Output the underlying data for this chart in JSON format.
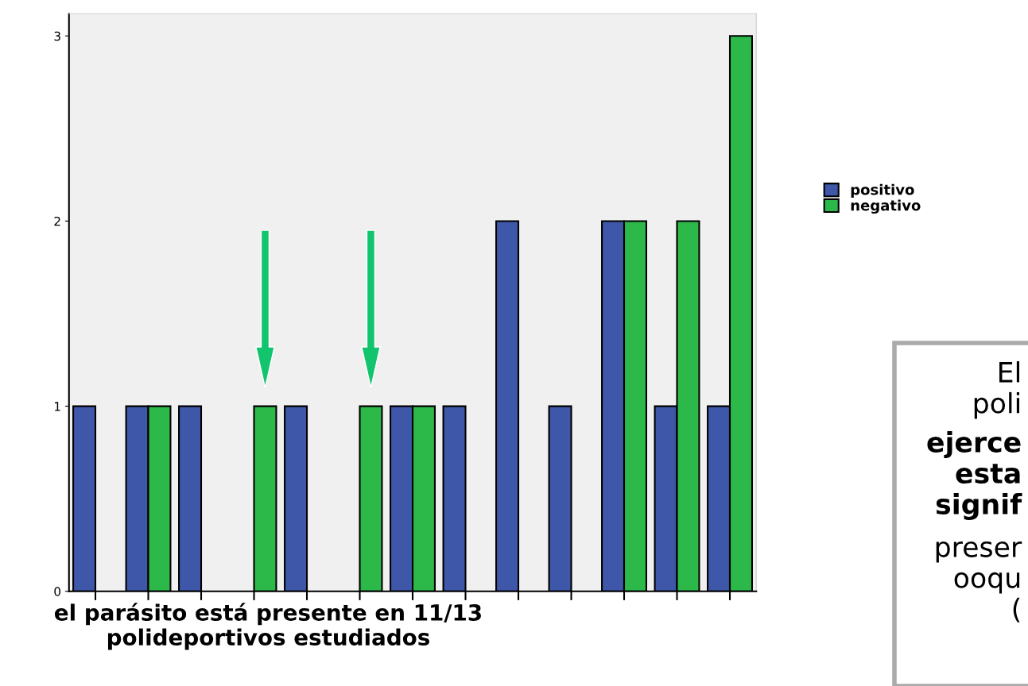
{
  "chart_data": {
    "type": "bar",
    "xlabel": "el parásito está presente en 11/13\npolideportivos estudiados",
    "categories": [
      null,
      null,
      null,
      null,
      null,
      null,
      null,
      null,
      null,
      null,
      null,
      null,
      null
    ],
    "series": [
      {
        "name": "positivo",
        "color": "#3f57a9",
        "values": [
          1,
          1,
          1,
          null,
          1,
          null,
          1,
          1,
          2,
          1,
          2,
          1,
          1
        ]
      },
      {
        "name": "negativo",
        "color": "#2db84a",
        "values": [
          null,
          1,
          null,
          1,
          null,
          1,
          1,
          null,
          null,
          null,
          2,
          2,
          3
        ]
      }
    ],
    "ylim": [
      0,
      3.12
    ],
    "yticks": [
      0,
      1,
      2,
      3
    ],
    "grid": false,
    "legend": "right",
    "annotations": [
      "El\npoli",
      "ejerce\nesta\nsignif",
      "preser\nooqu\n("
    ]
  }
}
